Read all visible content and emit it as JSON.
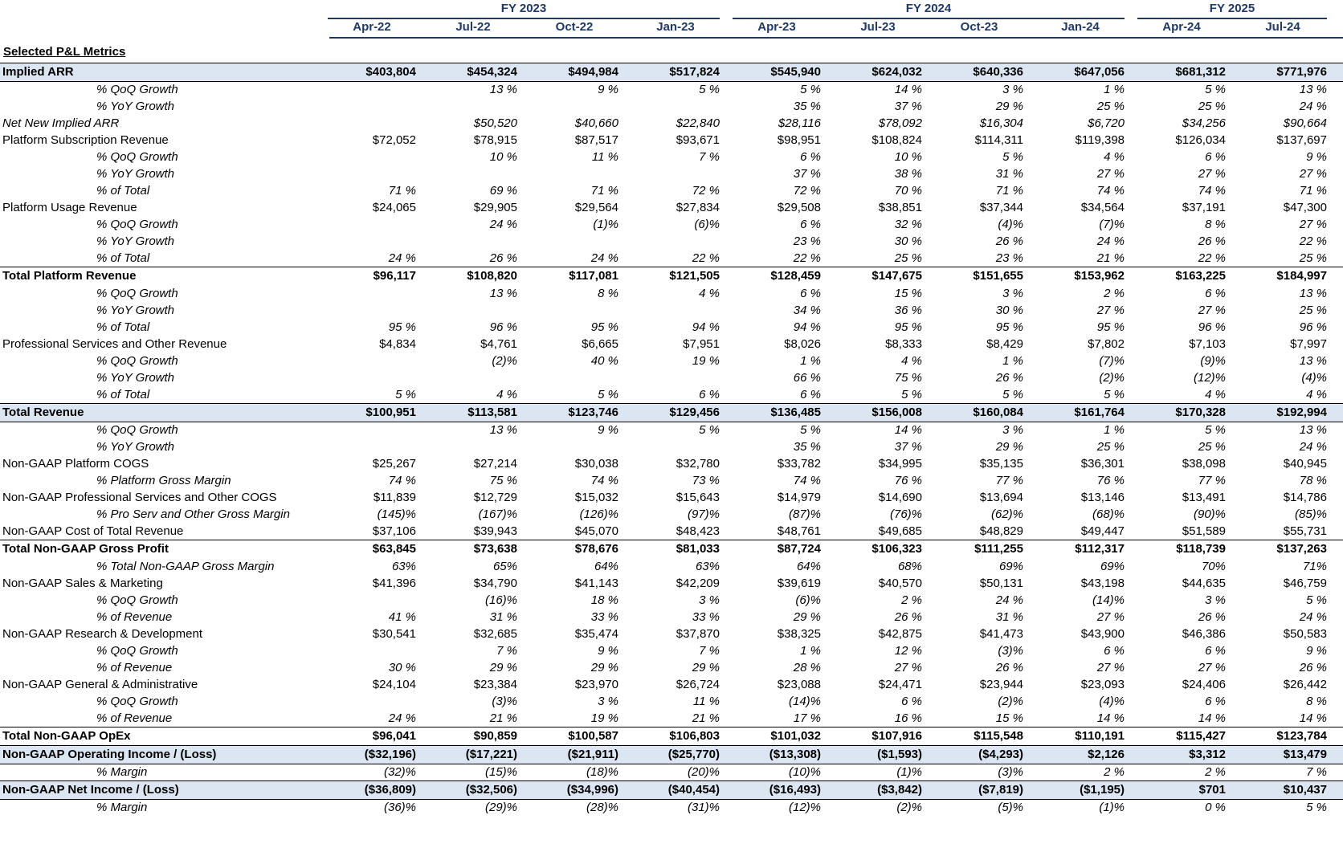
{
  "fiscal_years": [
    {
      "label": "FY 2023",
      "span": 4
    },
    {
      "label": "FY 2024",
      "span": 4
    },
    {
      "label": "FY 2025",
      "span": 2
    }
  ],
  "periods": [
    "Apr-22",
    "Jul-22",
    "Oct-22",
    "Jan-23",
    "Apr-23",
    "Jul-23",
    "Oct-23",
    "Jan-24",
    "Apr-24",
    "Jul-24"
  ],
  "section_title": "Selected P&L Metrics",
  "rows": [
    {
      "label": "Implied ARR",
      "style": "total-hl",
      "indent": 0,
      "values": [
        "$403,804",
        "$454,324",
        "$494,984",
        "$517,824",
        "$545,940",
        "$624,032",
        "$640,336",
        "$647,056",
        "$681,312",
        "$771,976"
      ]
    },
    {
      "label": "% QoQ Growth",
      "style": "pct",
      "indent": 1,
      "values": [
        "",
        "13 %",
        "9 %",
        "5 %",
        "5 %",
        "14 %",
        "3 %",
        "1 %",
        "5 %",
        "13 %"
      ]
    },
    {
      "label": "% YoY Growth",
      "style": "pct",
      "indent": 1,
      "values": [
        "",
        "",
        "",
        "",
        "35 %",
        "37 %",
        "29 %",
        "25 %",
        "25 %",
        "24 %"
      ]
    },
    {
      "label": "Net New Implied ARR",
      "style": "italic",
      "indent": 0,
      "values": [
        "",
        "$50,520",
        "$40,660",
        "$22,840",
        "$28,116",
        "$78,092",
        "$16,304",
        "$6,720",
        "$34,256",
        "$90,664"
      ]
    },
    {
      "label": "Platform Subscription Revenue",
      "style": "normal",
      "indent": 0,
      "values": [
        "$72,052",
        "$78,915",
        "$87,517",
        "$93,671",
        "$98,951",
        "$108,824",
        "$114,311",
        "$119,398",
        "$126,034",
        "$137,697"
      ]
    },
    {
      "label": "% QoQ Growth",
      "style": "pct",
      "indent": 1,
      "values": [
        "",
        "10 %",
        "11 %",
        "7 %",
        "6 %",
        "10 %",
        "5 %",
        "4 %",
        "6 %",
        "9 %"
      ]
    },
    {
      "label": "% YoY Growth",
      "style": "pct",
      "indent": 1,
      "values": [
        "",
        "",
        "",
        "",
        "37 %",
        "38 %",
        "31 %",
        "27 %",
        "27 %",
        "27 %"
      ]
    },
    {
      "label": "% of Total",
      "style": "pct",
      "indent": 1,
      "values": [
        "71 %",
        "69 %",
        "71 %",
        "72 %",
        "72 %",
        "70 %",
        "71 %",
        "74 %",
        "74 %",
        "71 %"
      ]
    },
    {
      "label": "Platform Usage Revenue",
      "style": "normal",
      "indent": 0,
      "values": [
        "$24,065",
        "$29,905",
        "$29,564",
        "$27,834",
        "$29,508",
        "$38,851",
        "$37,344",
        "$34,564",
        "$37,191",
        "$47,300"
      ]
    },
    {
      "label": "% QoQ Growth",
      "style": "pct",
      "indent": 1,
      "values": [
        "",
        "24 %",
        "(1)%",
        "(6)%",
        "6 %",
        "32 %",
        "(4)%",
        "(7)%",
        "8 %",
        "27 %"
      ]
    },
    {
      "label": "% YoY Growth",
      "style": "pct",
      "indent": 1,
      "values": [
        "",
        "",
        "",
        "",
        "23 %",
        "30 %",
        "26 %",
        "24 %",
        "26 %",
        "22 %"
      ]
    },
    {
      "label": "% of Total",
      "style": "pct",
      "indent": 1,
      "values": [
        "24 %",
        "26 %",
        "24 %",
        "22 %",
        "22 %",
        "25 %",
        "23 %",
        "21 %",
        "22 %",
        "25 %"
      ]
    },
    {
      "label": "Total Platform Revenue",
      "style": "total",
      "indent": 0,
      "values": [
        "$96,117",
        "$108,820",
        "$117,081",
        "$121,505",
        "$128,459",
        "$147,675",
        "$151,655",
        "$153,962",
        "$163,225",
        "$184,997"
      ]
    },
    {
      "label": "% QoQ Growth",
      "style": "pct",
      "indent": 1,
      "values": [
        "",
        "13 %",
        "8 %",
        "4 %",
        "6 %",
        "15 %",
        "3 %",
        "2 %",
        "6 %",
        "13 %"
      ]
    },
    {
      "label": "% YoY Growth",
      "style": "pct",
      "indent": 1,
      "values": [
        "",
        "",
        "",
        "",
        "34 %",
        "36 %",
        "30 %",
        "27 %",
        "27 %",
        "25 %"
      ]
    },
    {
      "label": "% of Total",
      "style": "pct",
      "indent": 1,
      "values": [
        "95 %",
        "96 %",
        "95 %",
        "94 %",
        "94 %",
        "95 %",
        "95 %",
        "95 %",
        "96 %",
        "96 %"
      ]
    },
    {
      "label": "Professional Services and Other Revenue",
      "style": "normal",
      "indent": 0,
      "values": [
        "$4,834",
        "$4,761",
        "$6,665",
        "$7,951",
        "$8,026",
        "$8,333",
        "$8,429",
        "$7,802",
        "$7,103",
        "$7,997"
      ]
    },
    {
      "label": "% QoQ Growth",
      "style": "pct",
      "indent": 1,
      "values": [
        "",
        "(2)%",
        "40 %",
        "19 %",
        "1 %",
        "4 %",
        "1 %",
        "(7)%",
        "(9)%",
        "13 %"
      ]
    },
    {
      "label": "% YoY Growth",
      "style": "pct",
      "indent": 1,
      "values": [
        "",
        "",
        "",
        "",
        "66 %",
        "75 %",
        "26 %",
        "(2)%",
        "(12)%",
        "(4)%"
      ]
    },
    {
      "label": "% of Total",
      "style": "pct",
      "indent": 1,
      "values": [
        "5 %",
        "4 %",
        "5 %",
        "6 %",
        "6 %",
        "5 %",
        "5 %",
        "5 %",
        "4 %",
        "4 %"
      ]
    },
    {
      "label": "Total Revenue",
      "style": "total-hl",
      "indent": 0,
      "values": [
        "$100,951",
        "$113,581",
        "$123,746",
        "$129,456",
        "$136,485",
        "$156,008",
        "$160,084",
        "$161,764",
        "$170,328",
        "$192,994"
      ]
    },
    {
      "label": "% QoQ Growth",
      "style": "pct",
      "indent": 1,
      "values": [
        "",
        "13 %",
        "9 %",
        "5 %",
        "5 %",
        "14 %",
        "3 %",
        "1 %",
        "5 %",
        "13 %"
      ]
    },
    {
      "label": "% YoY Growth",
      "style": "pct",
      "indent": 1,
      "values": [
        "",
        "",
        "",
        "",
        "35 %",
        "37 %",
        "29 %",
        "25 %",
        "25 %",
        "24 %"
      ]
    },
    {
      "label": "Non-GAAP Platform COGS",
      "style": "normal",
      "indent": 0,
      "values": [
        "$25,267",
        "$27,214",
        "$30,038",
        "$32,780",
        "$33,782",
        "$34,995",
        "$35,135",
        "$36,301",
        "$38,098",
        "$40,945"
      ]
    },
    {
      "label": "% Platform Gross Margin",
      "style": "pct",
      "indent": 1,
      "values": [
        "74 %",
        "75 %",
        "74 %",
        "73 %",
        "74 %",
        "76 %",
        "77 %",
        "76 %",
        "77 %",
        "78 %"
      ]
    },
    {
      "label": "Non-GAAP Professional Services and Other COGS",
      "style": "normal",
      "indent": 0,
      "values": [
        "$11,839",
        "$12,729",
        "$15,032",
        "$15,643",
        "$14,979",
        "$14,690",
        "$13,694",
        "$13,146",
        "$13,491",
        "$14,786"
      ]
    },
    {
      "label": "% Pro Serv and Other Gross Margin",
      "style": "pct",
      "indent": 1,
      "values": [
        "(145)%",
        "(167)%",
        "(126)%",
        "(97)%",
        "(87)%",
        "(76)%",
        "(62)%",
        "(68)%",
        "(90)%",
        "(85)%"
      ]
    },
    {
      "label": "Non-GAAP Cost of Total Revenue",
      "style": "normal",
      "indent": 0,
      "values": [
        "$37,106",
        "$39,943",
        "$45,070",
        "$48,423",
        "$48,761",
        "$49,685",
        "$48,829",
        "$49,447",
        "$51,589",
        "$55,731"
      ]
    },
    {
      "label": "Total Non-GAAP Gross Profit",
      "style": "total",
      "indent": 0,
      "values": [
        "$63,845",
        "$73,638",
        "$78,676",
        "$81,033",
        "$87,724",
        "$106,323",
        "$111,255",
        "$112,317",
        "$118,739",
        "$137,263"
      ]
    },
    {
      "label": "% Total Non-GAAP Gross Margin",
      "style": "pct",
      "indent": 1,
      "values": [
        "63%",
        "65%",
        "64%",
        "63%",
        "64%",
        "68%",
        "69%",
        "69%",
        "70%",
        "71%"
      ]
    },
    {
      "label": "Non-GAAP Sales & Marketing",
      "style": "normal",
      "indent": 0,
      "values": [
        "$41,396",
        "$34,790",
        "$41,143",
        "$42,209",
        "$39,619",
        "$40,570",
        "$50,131",
        "$43,198",
        "$44,635",
        "$46,759"
      ]
    },
    {
      "label": "% QoQ Growth",
      "style": "pct",
      "indent": 1,
      "values": [
        "",
        "(16)%",
        "18 %",
        "3 %",
        "(6)%",
        "2 %",
        "24 %",
        "(14)%",
        "3 %",
        "5 %"
      ]
    },
    {
      "label": "% of Revenue",
      "style": "pct",
      "indent": 1,
      "values": [
        "41 %",
        "31 %",
        "33 %",
        "33 %",
        "29 %",
        "26 %",
        "31 %",
        "27 %",
        "26 %",
        "24 %"
      ]
    },
    {
      "label": "Non-GAAP Research & Development",
      "style": "normal",
      "indent": 0,
      "values": [
        "$30,541",
        "$32,685",
        "$35,474",
        "$37,870",
        "$38,325",
        "$42,875",
        "$41,473",
        "$43,900",
        "$46,386",
        "$50,583"
      ]
    },
    {
      "label": "% QoQ Growth",
      "style": "pct",
      "indent": 1,
      "values": [
        "",
        "7 %",
        "9 %",
        "7 %",
        "1 %",
        "12 %",
        "(3)%",
        "6 %",
        "6 %",
        "9 %"
      ]
    },
    {
      "label": "% of Revenue",
      "style": "pct",
      "indent": 1,
      "values": [
        "30 %",
        "29 %",
        "29 %",
        "29 %",
        "28 %",
        "27 %",
        "26 %",
        "27 %",
        "27 %",
        "26 %"
      ]
    },
    {
      "label": "Non-GAAP General & Administrative",
      "style": "normal",
      "indent": 0,
      "values": [
        "$24,104",
        "$23,384",
        "$23,970",
        "$26,724",
        "$23,088",
        "$24,471",
        "$23,944",
        "$23,093",
        "$24,406",
        "$26,442"
      ]
    },
    {
      "label": "% QoQ Growth",
      "style": "pct",
      "indent": 1,
      "values": [
        "",
        "(3)%",
        "3 %",
        "11 %",
        "(14)%",
        "6 %",
        "(2)%",
        "(4)%",
        "6 %",
        "8 %"
      ]
    },
    {
      "label": "% of Revenue",
      "style": "pct",
      "indent": 1,
      "values": [
        "24 %",
        "21 %",
        "19 %",
        "21 %",
        "17 %",
        "16 %",
        "15 %",
        "14 %",
        "14 %",
        "14 %"
      ]
    },
    {
      "label": "Total Non-GAAP OpEx",
      "style": "total",
      "indent": 0,
      "values": [
        "$96,041",
        "$90,859",
        "$100,587",
        "$106,803",
        "$101,032",
        "$107,916",
        "$115,548",
        "$110,191",
        "$115,427",
        "$123,784"
      ]
    },
    {
      "label": "Non-GAAP Operating Income / (Loss)",
      "style": "total-hl",
      "indent": 0,
      "values": [
        "($32,196)",
        "($17,221)",
        "($21,911)",
        "($25,770)",
        "($13,308)",
        "($1,593)",
        "($4,293)",
        "$2,126",
        "$3,312",
        "$13,479"
      ]
    },
    {
      "label": "% Margin",
      "style": "pct",
      "indent": 1,
      "values": [
        "(32)%",
        "(15)%",
        "(18)%",
        "(20)%",
        "(10)%",
        "(1)%",
        "(3)%",
        "2 %",
        "2 %",
        "7 %"
      ]
    },
    {
      "label": "Non-GAAP Net Income / (Loss)",
      "style": "total-hl",
      "indent": 0,
      "values": [
        "($36,809)",
        "($32,506)",
        "($34,996)",
        "($40,454)",
        "($16,493)",
        "($3,842)",
        "($7,819)",
        "($1,195)",
        "$701",
        "$10,437"
      ]
    },
    {
      "label": "% Margin",
      "style": "pct",
      "indent": 1,
      "values": [
        "(36)%",
        "(29)%",
        "(28)%",
        "(31)%",
        "(12)%",
        "(2)%",
        "(5)%",
        "(1)%",
        "0 %",
        "5 %"
      ]
    }
  ]
}
